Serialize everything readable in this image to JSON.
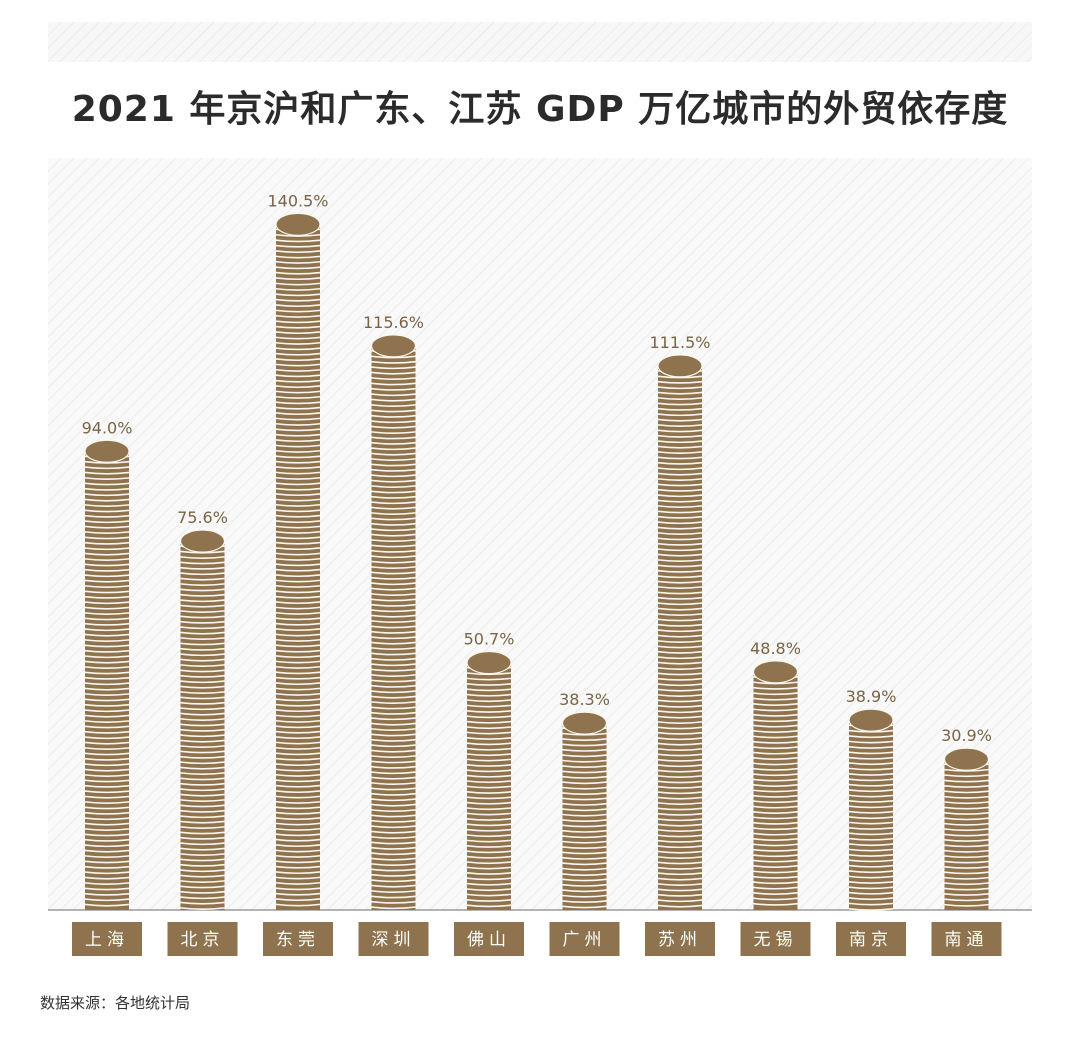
{
  "title": "2021 年京沪和广东、江苏 GDP 万亿城市的外贸依存度",
  "source": "数据来源：各地统计局",
  "colors": {
    "coin_side": "#8e734e",
    "coin_top": "#8e734e",
    "coin_stripe": "#fbf7ef",
    "label_bg": "#8e734e",
    "label_text": "#ffffff",
    "value_text": "#7a6445",
    "axis": "#888888"
  },
  "chart_data": {
    "type": "bar",
    "title": "2021 年京沪和广东、江苏 GDP 万亿城市的外贸依存度",
    "categories": [
      "上海",
      "北京",
      "东莞",
      "深圳",
      "佛山",
      "广州",
      "苏州",
      "无锡",
      "南京",
      "南通"
    ],
    "values": [
      94.0,
      75.6,
      140.5,
      115.6,
      50.7,
      38.3,
      111.5,
      48.8,
      38.9,
      30.9
    ],
    "value_labels": [
      "94.0%",
      "75.6%",
      "140.5%",
      "115.6%",
      "50.7%",
      "38.3%",
      "111.5%",
      "48.8%",
      "38.9%",
      "30.9%"
    ],
    "unit": "%",
    "ylim": [
      0,
      145
    ],
    "grid": false,
    "legend": "none",
    "style": "coin stacks"
  }
}
